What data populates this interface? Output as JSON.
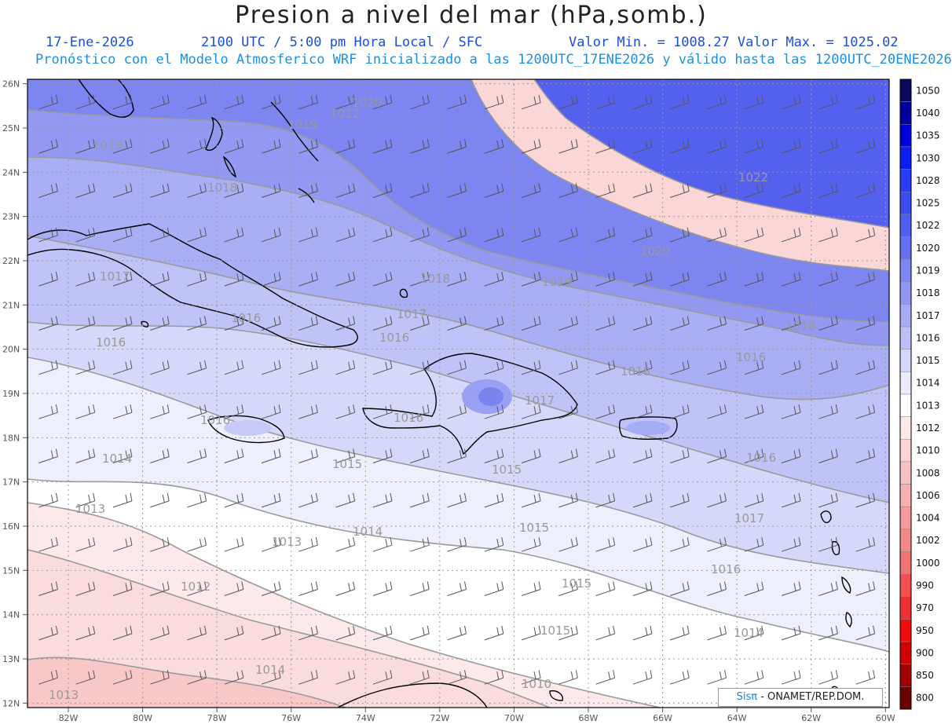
{
  "header": {
    "title": "Presion a nivel del mar (hPa,somb.)",
    "date": "17-Ene-2026",
    "time": "2100 UTC / 5:00 pm Hora Local / SFC",
    "min_max": "Valor Min. = 1008.27  Valor Max. = 1025.02",
    "model_info": "Pronóstico con el Modelo Atmosferico WRF inicializado a las 1200UTC_17ENE2026 y válido hasta las  1200UTC_20ENE2026"
  },
  "axes": {
    "lat_labels": [
      "26N",
      "25N",
      "24N",
      "23N",
      "22N",
      "21N",
      "20N",
      "19N",
      "18N",
      "17N",
      "16N",
      "15N",
      "14N",
      "13N",
      "12N"
    ],
    "lon_labels": [
      "82W",
      "80W",
      "78W",
      "76W",
      "74W",
      "72W",
      "70W",
      "68W",
      "66W",
      "64W",
      "62W",
      "60W"
    ]
  },
  "colorbar": {
    "levels": [
      "1050",
      "1040",
      "1035",
      "1030",
      "1028",
      "1025",
      "1022",
      "1020",
      "1019",
      "1018",
      "1017",
      "1016",
      "1015",
      "1014",
      "1013",
      "1012",
      "1010",
      "1008",
      "1006",
      "1004",
      "1002",
      "1000",
      "990",
      "970",
      "950",
      "900",
      "850",
      "800"
    ],
    "colors": [
      "#0a0a5a",
      "#00009c",
      "#0000d8",
      "#0a1ef0",
      "#2a3cf4",
      "#3a4cf0",
      "#4e5ef0",
      "#6472f2",
      "#7a86f2",
      "#9098f4",
      "#a6acf6",
      "#bcc0f8",
      "#d4d6fa",
      "#eaebfc",
      "#ffffff",
      "#fde8e8",
      "#fbd4d4",
      "#f8c2c2",
      "#f6b0b0",
      "#f49c9c",
      "#f28888",
      "#f07474",
      "#f25050",
      "#f03030",
      "#f00c0c",
      "#d00000",
      "#a00000",
      "#6a0000"
    ]
  },
  "contour_labels": [
    "1020",
    "1019",
    "1019",
    "1018",
    "1022",
    "1017",
    "1020",
    "1018",
    "1019",
    "1016",
    "1017",
    "1016",
    "1016",
    "1018",
    "1016",
    "1016",
    "1016",
    "1017",
    "1015",
    "1015",
    "1016",
    "1017",
    "1014",
    "1015",
    "1016",
    "1013",
    "1013",
    "1014",
    "1015",
    "1014",
    "1015",
    "1012",
    "1014",
    "1013",
    "1010",
    "1010",
    "1012"
  ],
  "credit": {
    "sis": "Sisπ",
    "rest": "- ONAMET/REP.DOM."
  }
}
